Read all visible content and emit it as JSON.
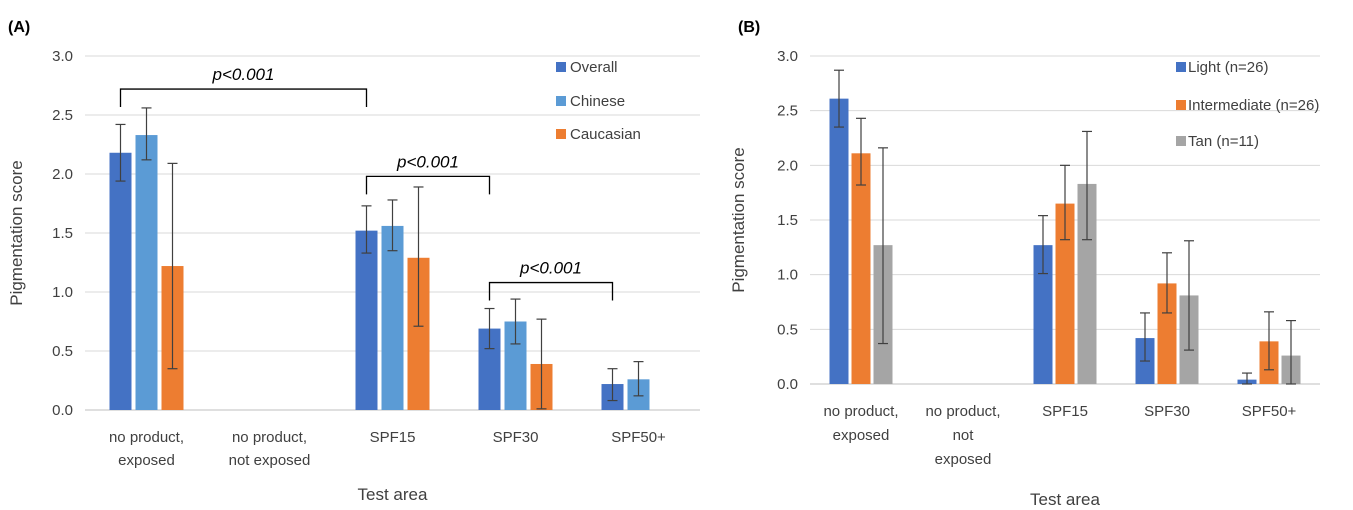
{
  "chart_data": [
    {
      "type": "bar",
      "panel_label": "(A)",
      "xlabel": "Test area",
      "ylabel": "Pigmentation score",
      "ylim": [
        0,
        3.0
      ],
      "yticks": [
        "0.0",
        "0.5",
        "1.0",
        "1.5",
        "2.0",
        "2.5",
        "3.0"
      ],
      "grid": true,
      "legend_position": "top-right",
      "categories": [
        [
          "no product,",
          "exposed"
        ],
        [
          "no product,",
          "not exposed"
        ],
        [
          "SPF15"
        ],
        [
          "SPF30"
        ],
        [
          "SPF50+"
        ]
      ],
      "series": [
        {
          "name": "Overall",
          "color": "#4472C4",
          "values": [
            2.18,
            null,
            1.52,
            0.69,
            0.22
          ],
          "err_low": [
            1.94,
            null,
            1.33,
            0.52,
            0.08
          ],
          "err_high": [
            2.42,
            null,
            1.73,
            0.86,
            0.35
          ]
        },
        {
          "name": "Chinese",
          "color": "#5B9BD5",
          "values": [
            2.33,
            null,
            1.56,
            0.75,
            0.26
          ],
          "err_low": [
            2.12,
            null,
            1.35,
            0.56,
            0.12
          ],
          "err_high": [
            2.56,
            null,
            1.78,
            0.94,
            0.41
          ]
        },
        {
          "name": "Caucasian",
          "color": "#ED7D31",
          "values": [
            1.22,
            null,
            1.29,
            0.39,
            null
          ],
          "err_low": [
            0.35,
            null,
            0.71,
            0.01,
            null
          ],
          "err_high": [
            2.09,
            null,
            1.89,
            0.77,
            null
          ]
        }
      ],
      "annotations": [
        {
          "text": "p<0.001",
          "from": 0,
          "to": 2,
          "level": 2.72
        },
        {
          "text": "p<0.001",
          "from": 2,
          "to": 3,
          "level": 1.98
        },
        {
          "text": "p<0.001",
          "from": 3,
          "to": 4,
          "level": 1.08
        }
      ]
    },
    {
      "type": "bar",
      "panel_label": "(B)",
      "xlabel": "Test area",
      "ylabel": "Pigmentation score",
      "ylim": [
        0,
        3.0
      ],
      "yticks": [
        "0.0",
        "0.5",
        "1.0",
        "1.5",
        "2.0",
        "2.5",
        "3.0"
      ],
      "grid": true,
      "legend_position": "top-right",
      "categories": [
        [
          "no product,",
          "exposed"
        ],
        [
          "no product,",
          "not",
          "exposed"
        ],
        [
          "SPF15"
        ],
        [
          "SPF30"
        ],
        [
          "SPF50+"
        ]
      ],
      "series": [
        {
          "name": "Light (n=26)",
          "color": "#4472C4",
          "values": [
            2.61,
            null,
            1.27,
            0.42,
            0.04
          ],
          "err_low": [
            2.35,
            null,
            1.01,
            0.21,
            0.0
          ],
          "err_high": [
            2.87,
            null,
            1.54,
            0.65,
            0.1
          ]
        },
        {
          "name": "Intermediate (n=26)",
          "color": "#ED7D31",
          "values": [
            2.11,
            null,
            1.65,
            0.92,
            0.39
          ],
          "err_low": [
            1.82,
            null,
            1.32,
            0.65,
            0.13
          ],
          "err_high": [
            2.43,
            null,
            2.0,
            1.2,
            0.66
          ]
        },
        {
          "name": "Tan (n=11)",
          "color": "#A5A5A5",
          "values": [
            1.27,
            null,
            1.83,
            0.81,
            0.26
          ],
          "err_low": [
            0.37,
            null,
            1.32,
            0.31,
            0.0
          ],
          "err_high": [
            2.16,
            null,
            2.31,
            1.31,
            0.58
          ]
        }
      ],
      "annotations": []
    }
  ]
}
